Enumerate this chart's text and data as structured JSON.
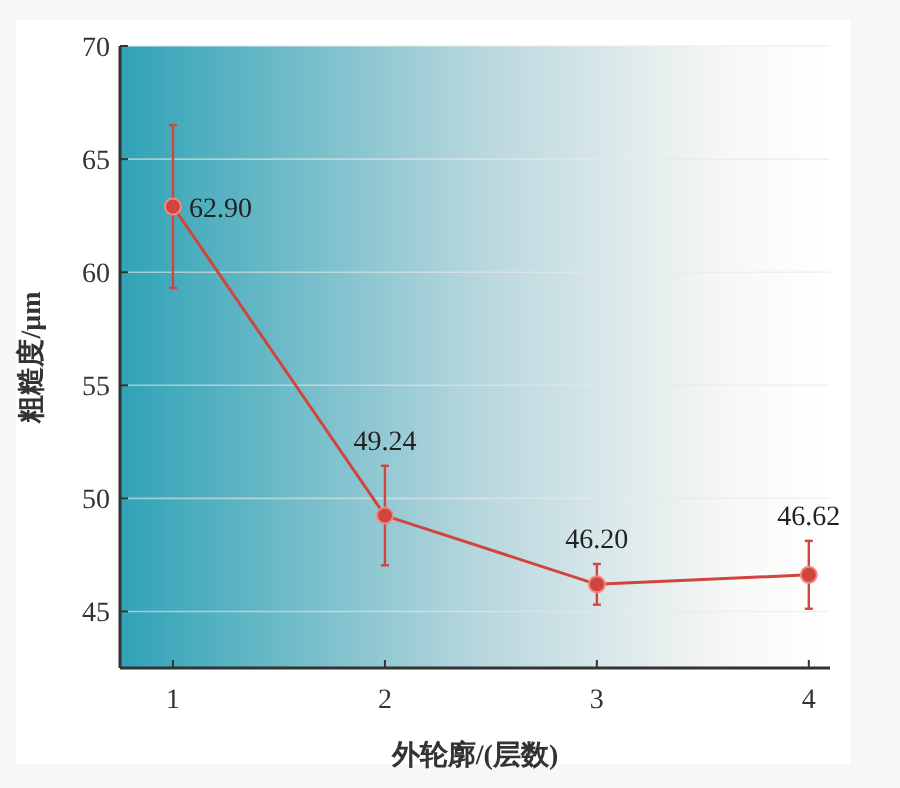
{
  "chart_data": {
    "type": "line",
    "xlabel": "外轮廓/(层数)",
    "ylabel": "粗糙度/μm",
    "x": [
      1,
      2,
      3,
      4
    ],
    "series": [
      {
        "color": "#d0453d",
        "values": [
          62.9,
          49.24,
          46.2,
          46.62
        ],
        "errors": [
          3.6,
          2.2,
          0.9,
          1.5
        ],
        "value_labels": [
          "62.90",
          "49.24",
          "46.20",
          "46.62"
        ]
      }
    ],
    "xlim": [
      0.75,
      4.1
    ],
    "ylim": [
      42.5,
      70
    ],
    "xticks": [
      1,
      2,
      3,
      4
    ],
    "yticks": [
      45,
      50,
      55,
      60,
      65,
      70
    ],
    "grid": "y",
    "marker": "circle",
    "line_style": "solid"
  }
}
